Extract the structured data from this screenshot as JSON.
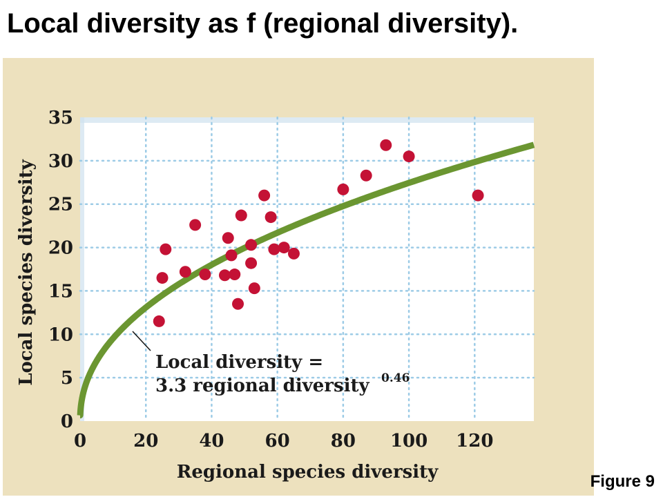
{
  "slide": {
    "title": "Local diversity as f (regional diversity).",
    "figure_label": "Figure 9"
  },
  "colors": {
    "panel_bg": "#ede1be",
    "plot_bg": "#ffffff",
    "grid": "#9ccbe6",
    "curve": "#6b9631",
    "points": "#c41235"
  },
  "chart_data": {
    "type": "scatter",
    "xlabel": "Regional species diversity",
    "ylabel": "Local species diversity",
    "xlim": [
      0,
      138
    ],
    "ylim": [
      0,
      35
    ],
    "xticks": [
      0,
      20,
      40,
      60,
      80,
      100,
      120
    ],
    "yticks": [
      0,
      5,
      10,
      15,
      20,
      25,
      30,
      35
    ],
    "grid": true,
    "points": [
      {
        "x": 24,
        "y": 11.5
      },
      {
        "x": 25,
        "y": 16.5
      },
      {
        "x": 26,
        "y": 19.8
      },
      {
        "x": 32,
        "y": 17.2
      },
      {
        "x": 35,
        "y": 22.6
      },
      {
        "x": 38,
        "y": 16.9
      },
      {
        "x": 44,
        "y": 16.8
      },
      {
        "x": 45,
        "y": 21.1
      },
      {
        "x": 46,
        "y": 19.1
      },
      {
        "x": 47,
        "y": 16.9
      },
      {
        "x": 48,
        "y": 13.5
      },
      {
        "x": 49,
        "y": 23.7
      },
      {
        "x": 52,
        "y": 18.2
      },
      {
        "x": 52,
        "y": 20.3
      },
      {
        "x": 53,
        "y": 15.3
      },
      {
        "x": 56,
        "y": 26.0
      },
      {
        "x": 58,
        "y": 23.5
      },
      {
        "x": 59,
        "y": 19.8
      },
      {
        "x": 62,
        "y": 20.0
      },
      {
        "x": 65,
        "y": 19.3
      },
      {
        "x": 80,
        "y": 26.7
      },
      {
        "x": 87,
        "y": 28.3
      },
      {
        "x": 93,
        "y": 31.8
      },
      {
        "x": 100,
        "y": 30.5
      },
      {
        "x": 121,
        "y": 26.0
      }
    ],
    "fit": {
      "coefficient": 3.3,
      "exponent": 0.46,
      "label_line1": "Local diversity =",
      "label_line2": "3.3 regional diversity",
      "label_exponent": "0.46"
    }
  }
}
